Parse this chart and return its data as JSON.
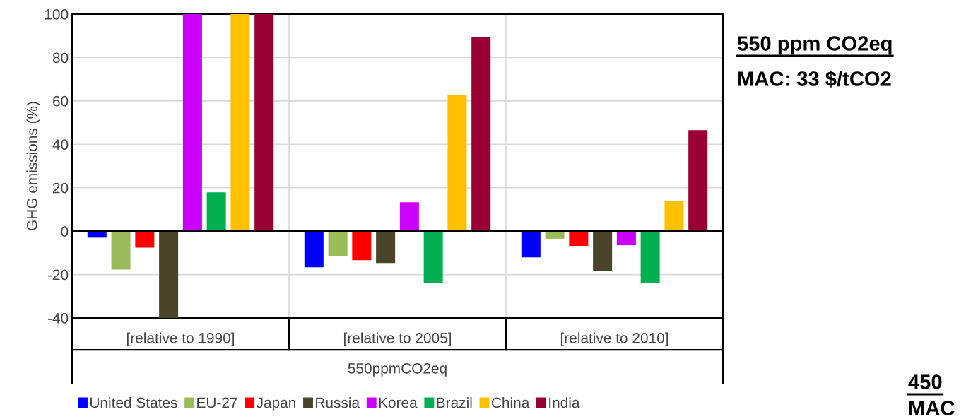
{
  "chart_data": {
    "type": "bar",
    "ylabel": "GHG emissions (%)",
    "xlabel": "550ppmCO2eq",
    "categories": [
      "[relative to 1990]",
      "[relative to 2005]",
      "[relative to 2010]"
    ],
    "series": [
      {
        "name": "United States",
        "color": "#0000ff",
        "values": [
          -3.0,
          -16.6,
          -12.1
        ]
      },
      {
        "name": "EU-27",
        "color": "#9bbb59",
        "values": [
          -17.7,
          -11.5,
          -3.5
        ]
      },
      {
        "name": "Japan",
        "color": "#ff0000",
        "values": [
          -7.6,
          -13.4,
          -6.8
        ]
      },
      {
        "name": "Russia",
        "color": "#4a452a",
        "values": [
          -40,
          -14.7,
          -18.2
        ]
      },
      {
        "name": "Korea",
        "color": "#cc00ff",
        "values": [
          100,
          13.3,
          -6.5
        ]
      },
      {
        "name": "Brazil",
        "color": "#00b050",
        "values": [
          17.9,
          -23.9,
          -23.9
        ]
      },
      {
        "name": "China",
        "color": "#ffc000",
        "values": [
          100,
          62.8,
          13.8
        ]
      },
      {
        "name": "India",
        "color": "#990033",
        "values": [
          100,
          89.5,
          46.5
        ]
      }
    ],
    "ylim": [
      -40,
      100
    ],
    "yticks": [
      -40,
      -20,
      0,
      20,
      40,
      60,
      80,
      100
    ],
    "grid": true,
    "legend": "bottom",
    "annotations": [
      "550 ppm CO2eq",
      "MAC: 33 $/tCO2",
      "450",
      "MAC"
    ]
  }
}
